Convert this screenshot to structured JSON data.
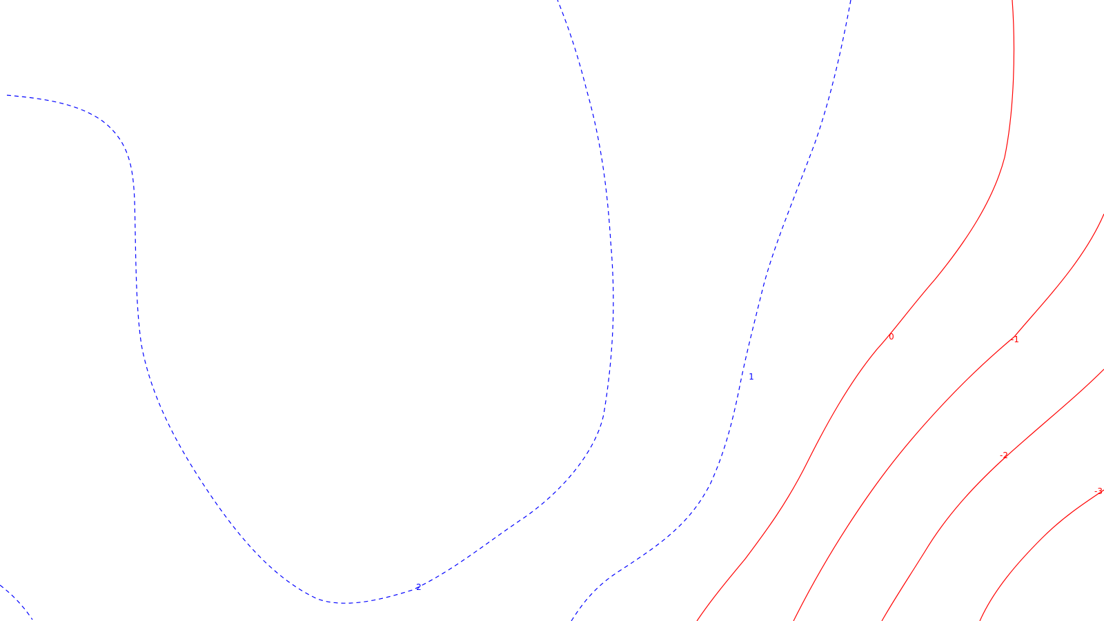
{
  "contour_map": {
    "background": "#ffffff",
    "colors": {
      "positive": "#0000ff",
      "negative": "#ff0000"
    },
    "contours": [
      {
        "id": "contour-2-left",
        "level": 2,
        "label": "",
        "sign": "positive",
        "dashed": true
      },
      {
        "id": "contour-2-main",
        "level": 2,
        "label": "2",
        "sign": "positive",
        "dashed": true
      },
      {
        "id": "contour-1",
        "level": 1,
        "label": "1",
        "sign": "positive",
        "dashed": true
      },
      {
        "id": "contour-0",
        "level": 0,
        "label": "0",
        "sign": "negative",
        "dashed": false
      },
      {
        "id": "contour-neg1",
        "level": -1,
        "label": "-1",
        "sign": "negative",
        "dashed": false
      },
      {
        "id": "contour-neg2",
        "level": -2,
        "label": "-2",
        "sign": "negative",
        "dashed": false
      },
      {
        "id": "contour-neg3",
        "level": -3,
        "label": "-3",
        "sign": "negative",
        "dashed": false
      }
    ]
  }
}
